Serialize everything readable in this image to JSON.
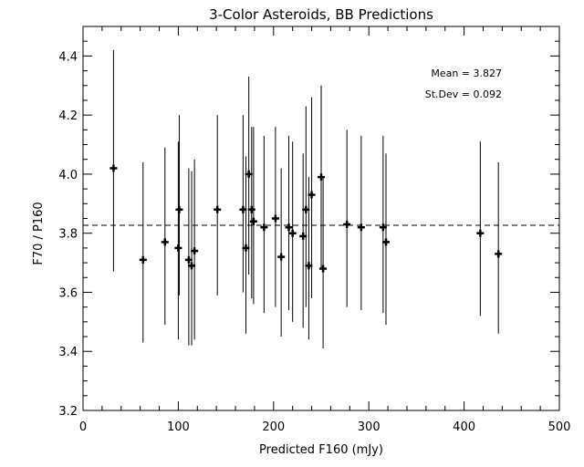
{
  "chart_data": {
    "type": "scatter",
    "title": "3-Color Asteroids, BB Predictions",
    "xlabel": "Predicted F160 (mJy)",
    "ylabel": "F70 / P160",
    "xlim": [
      0,
      500
    ],
    "ylim": [
      3.2,
      4.5
    ],
    "x_ticks": [
      0,
      100,
      200,
      300,
      400,
      500
    ],
    "y_ticks": [
      3.2,
      3.4,
      3.6,
      3.8,
      4.0,
      4.2,
      4.4
    ],
    "x_tick_labels": [
      "0",
      "100",
      "200",
      "300",
      "400",
      "500"
    ],
    "y_tick_labels": [
      "3.2",
      "3.4",
      "3.6",
      "3.8",
      "4.0",
      "4.2",
      "4.4"
    ],
    "grid": false,
    "reference_line": {
      "y": 3.827,
      "style": "dashed"
    },
    "annotations": [
      "Mean = 3.827",
      "St.Dev = 0.092"
    ],
    "points": [
      {
        "x": 32,
        "y": 4.02,
        "ylow": 3.67,
        "yhigh": 4.42
      },
      {
        "x": 63,
        "y": 3.71,
        "ylow": 3.43,
        "yhigh": 4.04
      },
      {
        "x": 86,
        "y": 3.77,
        "ylow": 3.49,
        "yhigh": 4.09
      },
      {
        "x": 100,
        "y": 3.75,
        "ylow": 3.44,
        "yhigh": 4.11
      },
      {
        "x": 101,
        "y": 3.88,
        "ylow": 3.59,
        "yhigh": 4.2
      },
      {
        "x": 111,
        "y": 3.71,
        "ylow": 3.42,
        "yhigh": 4.02
      },
      {
        "x": 114,
        "y": 3.69,
        "ylow": 3.42,
        "yhigh": 4.01
      },
      {
        "x": 117,
        "y": 3.74,
        "ylow": 3.44,
        "yhigh": 4.05
      },
      {
        "x": 141,
        "y": 3.88,
        "ylow": 3.59,
        "yhigh": 4.2
      },
      {
        "x": 168,
        "y": 3.88,
        "ylow": 3.6,
        "yhigh": 4.2
      },
      {
        "x": 171,
        "y": 3.75,
        "ylow": 3.46,
        "yhigh": 4.06
      },
      {
        "x": 174,
        "y": 4.0,
        "ylow": 3.66,
        "yhigh": 4.33
      },
      {
        "x": 177,
        "y": 3.88,
        "ylow": 3.58,
        "yhigh": 4.16
      },
      {
        "x": 179,
        "y": 3.84,
        "ylow": 3.56,
        "yhigh": 4.16
      },
      {
        "x": 190,
        "y": 3.82,
        "ylow": 3.53,
        "yhigh": 4.13
      },
      {
        "x": 202,
        "y": 3.85,
        "ylow": 3.55,
        "yhigh": 4.16
      },
      {
        "x": 208,
        "y": 3.72,
        "ylow": 3.45,
        "yhigh": 4.02
      },
      {
        "x": 216,
        "y": 3.82,
        "ylow": 3.54,
        "yhigh": 4.13
      },
      {
        "x": 220,
        "y": 3.8,
        "ylow": 3.5,
        "yhigh": 4.11
      },
      {
        "x": 231,
        "y": 3.79,
        "ylow": 3.48,
        "yhigh": 4.07
      },
      {
        "x": 234,
        "y": 3.88,
        "ylow": 3.55,
        "yhigh": 4.23
      },
      {
        "x": 237,
        "y": 3.69,
        "ylow": 3.44,
        "yhigh": 3.99
      },
      {
        "x": 240,
        "y": 3.93,
        "ylow": 3.58,
        "yhigh": 4.26
      },
      {
        "x": 250,
        "y": 3.99,
        "ylow": 3.68,
        "yhigh": 4.3
      },
      {
        "x": 252,
        "y": 3.68,
        "ylow": 3.41,
        "yhigh": 3.99
      },
      {
        "x": 277,
        "y": 3.83,
        "ylow": 3.55,
        "yhigh": 4.15
      },
      {
        "x": 292,
        "y": 3.82,
        "ylow": 3.54,
        "yhigh": 4.13
      },
      {
        "x": 315,
        "y": 3.82,
        "ylow": 3.53,
        "yhigh": 4.13
      },
      {
        "x": 318,
        "y": 3.77,
        "ylow": 3.49,
        "yhigh": 4.07
      },
      {
        "x": 417,
        "y": 3.8,
        "ylow": 3.52,
        "yhigh": 4.11
      },
      {
        "x": 436,
        "y": 3.73,
        "ylow": 3.46,
        "yhigh": 4.04
      }
    ]
  }
}
